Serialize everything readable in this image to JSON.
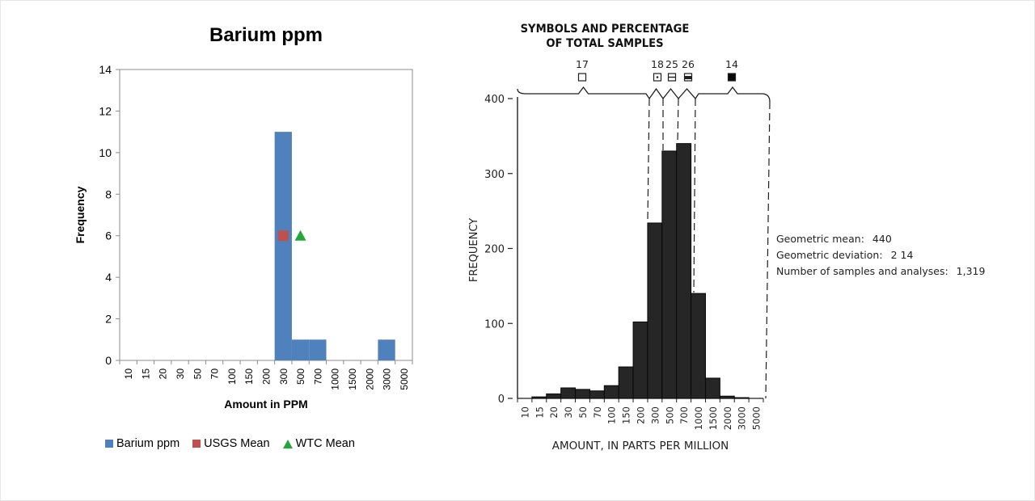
{
  "chart_data": [
    {
      "type": "bar",
      "title": "Barium ppm",
      "xlabel": "Amount in PPM",
      "ylabel": "Frequency",
      "ylim": [
        0,
        14
      ],
      "yticks": [
        0,
        2,
        4,
        6,
        8,
        10,
        12,
        14
      ],
      "categories": [
        "10",
        "15",
        "20",
        "30",
        "50",
        "70",
        "100",
        "150",
        "200",
        "300",
        "500",
        "700",
        "1000",
        "1500",
        "2000",
        "3000",
        "5000"
      ],
      "series": [
        {
          "name": "Barium ppm",
          "type": "bar",
          "color": "#4f81bd",
          "values": [
            0,
            0,
            0,
            0,
            0,
            0,
            0,
            0,
            0,
            11,
            1,
            1,
            0,
            0,
            0,
            1,
            0
          ]
        },
        {
          "name": "USGS Mean",
          "type": "scatter",
          "marker": "square",
          "color": "#c0504d",
          "points": [
            {
              "category": "300",
              "y": 6
            }
          ]
        },
        {
          "name": "WTC Mean",
          "type": "scatter",
          "marker": "triangle",
          "color": "#22a838",
          "points": [
            {
              "category": "500",
              "y": 6
            }
          ]
        }
      ],
      "legend": "bottom",
      "grid": false
    },
    {
      "type": "bar",
      "title": "SYMBOLS AND PERCENTAGE OF TOTAL SAMPLES",
      "xlabel": "AMOUNT, IN PARTS PER MILLION",
      "ylabel": "FREQUENCY",
      "ylim": [
        0,
        400
      ],
      "yticks": [
        0,
        100,
        200,
        300,
        400
      ],
      "categories": [
        "10",
        "15",
        "20",
        "30",
        "50",
        "70",
        "100",
        "150",
        "200",
        "300",
        "500",
        "700",
        "1000",
        "1500",
        "2000",
        "3000",
        "5000"
      ],
      "values": [
        0,
        2,
        6,
        14,
        12,
        10,
        17,
        42,
        102,
        234,
        330,
        340,
        140,
        27,
        3,
        1,
        0
      ],
      "groups": [
        {
          "label": "17",
          "symbol": "open-square"
        },
        {
          "label": "18",
          "symbol": "square-dot"
        },
        {
          "label": "25",
          "symbol": "square-half"
        },
        {
          "label": "26",
          "symbol": "square-band"
        },
        {
          "label": "14",
          "symbol": "filled-square"
        }
      ],
      "stats": [
        {
          "label": "Geometric mean:",
          "value": "440"
        },
        {
          "label": "Geometric deviation:",
          "value": "2 14"
        },
        {
          "label": "Number of samples and analyses:",
          "value": "1,319"
        }
      ],
      "color": "#262626",
      "grid": false
    }
  ]
}
